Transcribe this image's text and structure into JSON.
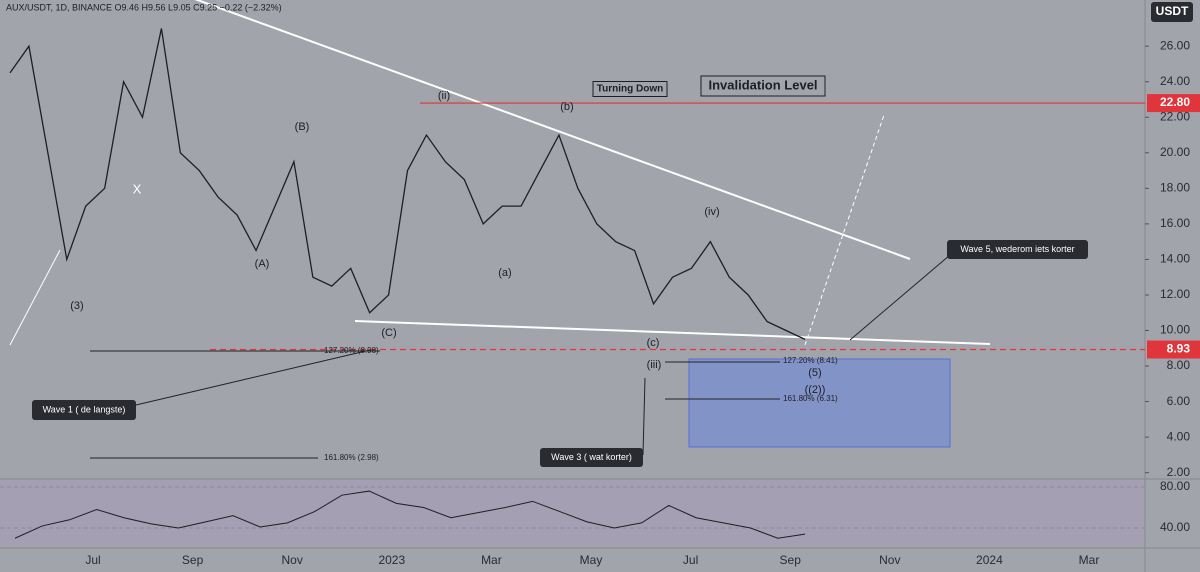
{
  "chart_data": {
    "type": "line",
    "title": "AUX/USDT, 1D, BINANCE O9.46 H9.56 L9.05 C9.25 −0.22 (−2.32%)",
    "currency": "USDT",
    "color": "#1e1f24",
    "ylim": [
      1.7,
      28.6
    ],
    "yticks": [
      {
        "value": 2,
        "label": "2.00"
      },
      {
        "value": 4,
        "label": "4.00"
      },
      {
        "value": 6,
        "label": "6.00"
      },
      {
        "value": 8,
        "label": "8.00"
      },
      {
        "value": 10,
        "label": "10.00"
      },
      {
        "value": 12,
        "label": "12.00"
      },
      {
        "value": 14,
        "label": "14.00"
      },
      {
        "value": 16,
        "label": "16.00"
      },
      {
        "value": 18,
        "label": "18.00"
      },
      {
        "value": 20,
        "label": "20.00"
      },
      {
        "value": 22,
        "label": "22.00"
      },
      {
        "value": 24,
        "label": "24.00"
      },
      {
        "value": 26,
        "label": "26.00"
      }
    ],
    "xticks": [
      "Jul",
      "Sep",
      "Nov",
      "2023",
      "Mar",
      "May",
      "Jul",
      "Sep",
      "Nov",
      "2024",
      "Mar"
    ],
    "values": [
      24.5,
      26,
      20,
      14,
      17,
      18,
      24,
      22,
      27,
      20,
      19,
      17.5,
      16.5,
      14.5,
      17,
      19.5,
      13,
      12.5,
      13.5,
      11,
      12,
      19,
      21,
      19.5,
      18.5,
      16,
      17,
      17,
      19,
      21,
      18,
      16,
      15,
      14.5,
      11.5,
      13,
      13.5,
      15,
      13,
      12,
      10.5,
      10,
      9.5
    ],
    "levels": [
      {
        "value": 22.8,
        "label": "22.80",
        "color": "#e0353b",
        "dashed": false
      },
      {
        "value": 8.93,
        "label": "8.93",
        "color": "#e0353b",
        "dashed": true
      }
    ],
    "annotations": [
      "Turning Down",
      "Invalidation Level",
      "(ii)",
      "(b)",
      "(B)",
      "(iv)",
      "(A)",
      "(a)",
      "(C)",
      "(c)",
      "(iii)",
      "(3)",
      "(5)",
      "((2))",
      "X",
      "127.20% (8.98)",
      "161.80% (2.98)",
      "127.20% (8.41)",
      "161.80% (6.31)"
    ],
    "callouts": [
      "Wave 5, wederom iets korter",
      "Wave 1 ( de langste)",
      "Wave 3 ( wat korter)"
    ],
    "rsi": {
      "color": "#1e1f24",
      "ma_color": "#c8b35a",
      "ylim": [
        20.5,
        86.8
      ],
      "yticks": [
        {
          "value": 40,
          "label": "40.00"
        },
        {
          "value": 80,
          "label": "80.00"
        }
      ],
      "values": [
        30,
        42,
        48,
        58,
        50,
        44,
        40,
        46,
        52,
        41,
        45,
        56,
        72,
        76,
        64,
        60,
        50,
        55,
        60,
        66,
        56,
        46,
        40,
        45,
        62,
        50,
        45,
        40,
        30,
        34
      ]
    }
  }
}
